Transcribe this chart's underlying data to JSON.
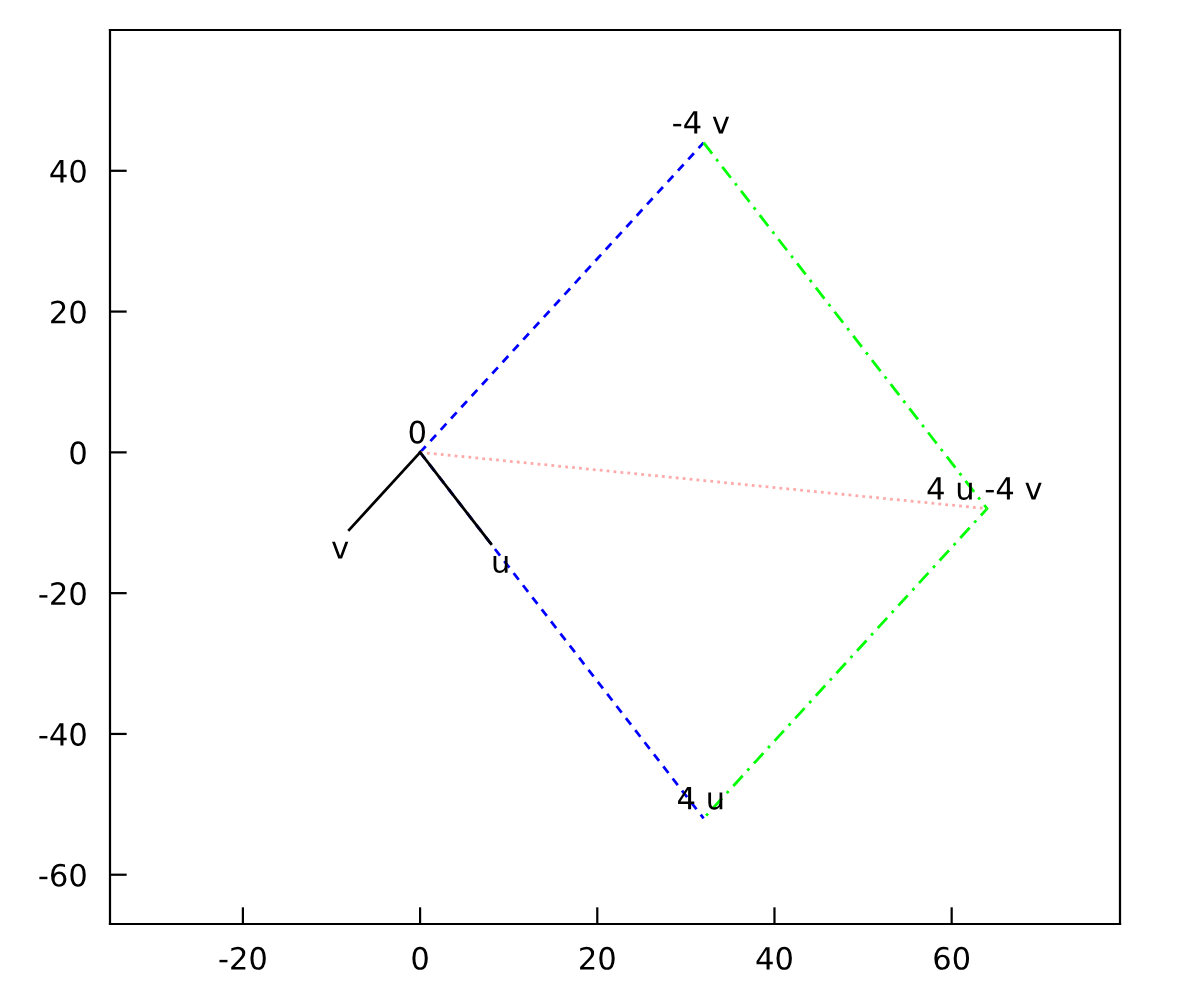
{
  "chart_data": {
    "type": "line",
    "xlim": [
      -35,
      79
    ],
    "ylim": [
      -67,
      60
    ],
    "xticks": [
      -20,
      0,
      20,
      40,
      60
    ],
    "yticks": [
      -60,
      -40,
      -20,
      0,
      20,
      40
    ],
    "grid": false,
    "legend": false,
    "marker": "none",
    "series": [
      {
        "color": "#0000ff",
        "line_style": "dashed",
        "x": [
          0,
          32
        ],
        "values": [
          0,
          44
        ]
      },
      {
        "color": "#0000ff",
        "line_style": "dashed",
        "x": [
          0,
          32
        ],
        "values": [
          0,
          -52
        ]
      },
      {
        "color": "#00ff00",
        "line_style": "dashdot",
        "x": [
          32,
          64,
          32
        ],
        "values": [
          44,
          -8,
          -52
        ]
      },
      {
        "color": "#ffaaaa",
        "line_style": "dotted",
        "x": [
          0,
          64
        ],
        "values": [
          0,
          -8
        ]
      },
      {
        "color": "#000000",
        "line_style": "solid",
        "x": [
          0,
          8
        ],
        "values": [
          0,
          -13
        ]
      },
      {
        "color": "#000000",
        "line_style": "solid",
        "x": [
          0,
          -8
        ],
        "values": [
          0,
          -11
        ]
      }
    ],
    "annotations": [
      {
        "text": "0",
        "x": 0,
        "y": 0
      },
      {
        "text": "u",
        "x": 8,
        "y": -13
      },
      {
        "text": "v",
        "x": -8,
        "y": -11
      },
      {
        "text": "-4 v",
        "x": 32,
        "y": 44
      },
      {
        "text": "4 u -4 v",
        "x": 64,
        "y": -8
      },
      {
        "text": "4 u",
        "x": 32,
        "y": -52
      }
    ]
  }
}
